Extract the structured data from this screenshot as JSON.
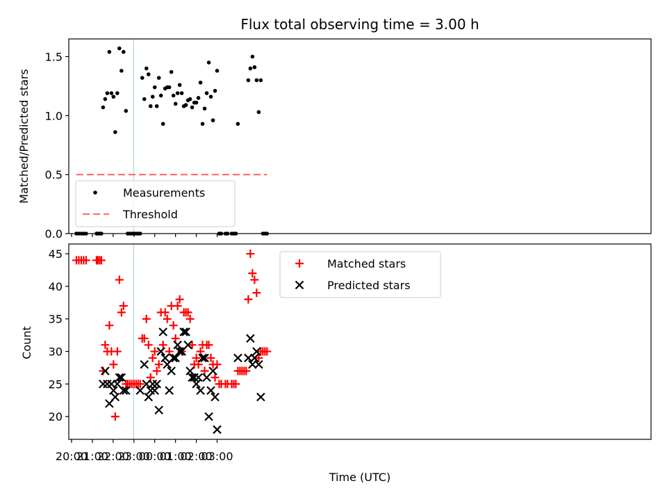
{
  "chart_data": [
    {
      "type": "scatter",
      "title": "Flux total observing time = 3.00 h",
      "ylabel": "Matched/Predicted stars",
      "xlabel": "",
      "xlim": [
        "19:52",
        "23:52 (+24h)"
      ],
      "ylim": [
        0,
        1.65
      ],
      "yticks": [
        "0.0",
        "0.5",
        "1.0",
        "1.5"
      ],
      "grid": false,
      "legend_position": "lower-left",
      "shaded_interval": [
        "22:59",
        "01:58"
      ],
      "series": [
        {
          "name": "Measurements",
          "color": "#000000",
          "marker": "dot",
          "points": [
            [
              "20:14",
              0
            ],
            [
              "20:21",
              0
            ],
            [
              "20:28",
              0
            ],
            [
              "20:35",
              0
            ],
            [
              "20:42",
              0
            ],
            [
              "21:12",
              0
            ],
            [
              "21:16",
              0
            ],
            [
              "21:21",
              0
            ],
            [
              "21:26",
              0
            ],
            [
              "21:31",
              1.07
            ],
            [
              "21:37",
              1.14
            ],
            [
              "21:43",
              1.19
            ],
            [
              "21:49",
              1.54
            ],
            [
              "21:55",
              1.19
            ],
            [
              "22:01",
              1.16
            ],
            [
              "22:06",
              0.86
            ],
            [
              "22:12",
              1.19
            ],
            [
              "22:18",
              1.57
            ],
            [
              "22:24",
              1.38
            ],
            [
              "22:30",
              1.54
            ],
            [
              "22:37",
              1.04
            ],
            [
              "22:42",
              0
            ],
            [
              "22:48",
              0
            ],
            [
              "22:54",
              0
            ],
            [
              "23:00",
              0
            ],
            [
              "23:06",
              0
            ],
            [
              "23:12",
              0
            ],
            [
              "23:18",
              0
            ],
            [
              "23:24",
              1.32
            ],
            [
              "23:30",
              1.14
            ],
            [
              "23:36",
              1.4
            ],
            [
              "23:42",
              1.35
            ],
            [
              "23:48",
              1.08
            ],
            [
              "23:54",
              1.16
            ],
            [
              "24:00",
              1.24
            ],
            [
              "24:06",
              1.08
            ],
            [
              "24:12",
              1.32
            ],
            [
              "24:18",
              1.17
            ],
            [
              "24:24",
              0.93
            ],
            [
              "24:30",
              1.23
            ],
            [
              "24:36",
              1.24
            ],
            [
              "24:42",
              1.24
            ],
            [
              "24:48",
              1.37
            ],
            [
              "24:54",
              1.17
            ],
            [
              "25:00",
              1.1
            ],
            [
              "25:06",
              1.19
            ],
            [
              "25:12",
              1.26
            ],
            [
              "25:18",
              1.19
            ],
            [
              "25:24",
              1.08
            ],
            [
              "25:30",
              1.09
            ],
            [
              "25:36",
              1.13
            ],
            [
              "25:42",
              1.14
            ],
            [
              "25:48",
              1.07
            ],
            [
              "25:54",
              1.11
            ],
            [
              "26:00",
              1.11
            ],
            [
              "26:06",
              1.15
            ],
            [
              "26:12",
              1.28
            ],
            [
              "26:18",
              0.93
            ],
            [
              "26:24",
              1.06
            ],
            [
              "26:30",
              1.19
            ],
            [
              "26:36",
              1.45
            ],
            [
              "26:42",
              1.16
            ],
            [
              "26:48",
              0.96
            ],
            [
              "26:54",
              1.21
            ],
            [
              "27:00",
              1.38
            ],
            [
              "27:06",
              0
            ],
            [
              "27:12",
              0
            ],
            [
              "27:24",
              0
            ],
            [
              "27:30",
              0
            ],
            [
              "27:42",
              0
            ],
            [
              "27:48",
              0
            ],
            [
              "27:54",
              0
            ],
            [
              "28:00",
              0.93
            ],
            [
              "28:30",
              1.3
            ],
            [
              "28:36",
              1.4
            ],
            [
              "28:42",
              1.5
            ],
            [
              "28:48",
              1.41
            ],
            [
              "28:54",
              1.3
            ],
            [
              "29:00",
              1.03
            ],
            [
              "29:06",
              1.3
            ],
            [
              "29:12",
              0
            ],
            [
              "29:18",
              0
            ],
            [
              "29:24",
              0
            ]
          ]
        },
        {
          "name": "Threshold",
          "color": "#ff7070",
          "style": "dashed",
          "points": [
            [
              "20:14",
              0.5
            ],
            [
              "29:24",
              0.5
            ]
          ]
        }
      ]
    },
    {
      "type": "scatter",
      "title": "",
      "ylabel": "Count",
      "xlabel": "Time (UTC)",
      "xlim": [
        "19:52",
        "23:52 (+24h)"
      ],
      "ylim": [
        16.5,
        46.5
      ],
      "yticks": [
        "20",
        "25",
        "30",
        "35",
        "40",
        "45"
      ],
      "xticks": [
        "20:00",
        "21:00",
        "22:00",
        "23:00",
        "00:00",
        "01:00",
        "02:00",
        "03:00"
      ],
      "grid": false,
      "legend_position": "upper-center",
      "shaded_interval": [
        "22:59",
        "01:58"
      ],
      "series": [
        {
          "name": "Matched stars",
          "color": "#ff0000",
          "marker": "plus",
          "points": [
            [
              "20:14",
              44
            ],
            [
              "20:21",
              44
            ],
            [
              "20:28",
              44
            ],
            [
              "20:35",
              44
            ],
            [
              "20:42",
              44
            ],
            [
              "21:12",
              44
            ],
            [
              "21:16",
              44
            ],
            [
              "21:21",
              44
            ],
            [
              "21:26",
              44
            ],
            [
              "21:31",
              27
            ],
            [
              "21:37",
              31
            ],
            [
              "21:43",
              30
            ],
            [
              "21:49",
              34
            ],
            [
              "21:55",
              30
            ],
            [
              "22:01",
              28
            ],
            [
              "22:06",
              20
            ],
            [
              "22:12",
              30
            ],
            [
              "22:18",
              41
            ],
            [
              "22:24",
              36
            ],
            [
              "22:30",
              37
            ],
            [
              "22:37",
              25
            ],
            [
              "22:42",
              25
            ],
            [
              "22:48",
              25
            ],
            [
              "22:54",
              25
            ],
            [
              "23:00",
              25
            ],
            [
              "23:06",
              25
            ],
            [
              "23:12",
              25
            ],
            [
              "23:18",
              25
            ],
            [
              "23:24",
              32
            ],
            [
              "23:30",
              32
            ],
            [
              "23:36",
              35
            ],
            [
              "23:42",
              31
            ],
            [
              "23:48",
              26
            ],
            [
              "23:54",
              29
            ],
            [
              "24:00",
              30
            ],
            [
              "24:06",
              27
            ],
            [
              "24:12",
              28
            ],
            [
              "24:18",
              36
            ],
            [
              "24:24",
              31
            ],
            [
              "24:30",
              36
            ],
            [
              "24:36",
              35
            ],
            [
              "24:42",
              30
            ],
            [
              "24:48",
              37
            ],
            [
              "24:54",
              34
            ],
            [
              "25:00",
              32
            ],
            [
              "25:06",
              37
            ],
            [
              "25:12",
              38
            ],
            [
              "25:18",
              30
            ],
            [
              "25:24",
              36
            ],
            [
              "25:30",
              36
            ],
            [
              "25:36",
              36
            ],
            [
              "25:42",
              35
            ],
            [
              "25:48",
              31
            ],
            [
              "25:54",
              28
            ],
            [
              "26:00",
              29
            ],
            [
              "26:06",
              28
            ],
            [
              "26:12",
              30
            ],
            [
              "26:18",
              31
            ],
            [
              "26:24",
              27
            ],
            [
              "26:30",
              31
            ],
            [
              "26:36",
              31
            ],
            [
              "26:42",
              29
            ],
            [
              "26:48",
              28
            ],
            [
              "26:54",
              26
            ],
            [
              "27:00",
              28
            ],
            [
              "27:06",
              25
            ],
            [
              "27:12",
              25
            ],
            [
              "27:24",
              25
            ],
            [
              "27:30",
              25
            ],
            [
              "27:42",
              25
            ],
            [
              "27:48",
              25
            ],
            [
              "27:54",
              25
            ],
            [
              "28:00",
              27
            ],
            [
              "28:06",
              27
            ],
            [
              "28:12",
              27
            ],
            [
              "28:18",
              27
            ],
            [
              "28:24",
              27
            ],
            [
              "28:30",
              38
            ],
            [
              "28:36",
              45
            ],
            [
              "28:42",
              42
            ],
            [
              "28:48",
              41
            ],
            [
              "28:54",
              39
            ],
            [
              "29:00",
              29
            ],
            [
              "29:06",
              30
            ],
            [
              "29:12",
              30
            ],
            [
              "29:18",
              30
            ],
            [
              "29:24",
              30
            ]
          ]
        },
        {
          "name": "Predicted stars",
          "color": "#000000",
          "marker": "x",
          "points": [
            [
              "21:31",
              25
            ],
            [
              "21:37",
              27
            ],
            [
              "21:43",
              25
            ],
            [
              "21:49",
              22
            ],
            [
              "21:55",
              25
            ],
            [
              "22:01",
              24
            ],
            [
              "22:06",
              23
            ],
            [
              "22:12",
              25
            ],
            [
              "22:18",
              26
            ],
            [
              "22:24",
              26
            ],
            [
              "22:30",
              24
            ],
            [
              "22:37",
              24
            ],
            [
              "23:18",
              24
            ],
            [
              "23:30",
              28
            ],
            [
              "23:36",
              25
            ],
            [
              "23:42",
              23
            ],
            [
              "23:48",
              24
            ],
            [
              "23:54",
              25
            ],
            [
              "24:00",
              24
            ],
            [
              "24:06",
              25
            ],
            [
              "24:12",
              21
            ],
            [
              "24:18",
              30
            ],
            [
              "24:24",
              33
            ],
            [
              "24:30",
              29
            ],
            [
              "24:36",
              28
            ],
            [
              "24:42",
              24
            ],
            [
              "24:48",
              27
            ],
            [
              "24:54",
              29
            ],
            [
              "25:00",
              29
            ],
            [
              "25:06",
              31
            ],
            [
              "25:12",
              30
            ],
            [
              "25:18",
              30
            ],
            [
              "25:24",
              33
            ],
            [
              "25:30",
              33
            ],
            [
              "25:36",
              31
            ],
            [
              "25:42",
              27
            ],
            [
              "25:48",
              26
            ],
            [
              "25:54",
              26
            ],
            [
              "26:00",
              25
            ],
            [
              "26:06",
              26
            ],
            [
              "26:12",
              24
            ],
            [
              "26:18",
              29
            ],
            [
              "26:24",
              29
            ],
            [
              "26:30",
              26
            ],
            [
              "26:36",
              20
            ],
            [
              "26:42",
              24
            ],
            [
              "26:48",
              27
            ],
            [
              "26:54",
              23
            ],
            [
              "27:00",
              18
            ],
            [
              "28:00",
              29
            ],
            [
              "28:30",
              29
            ],
            [
              "28:36",
              32
            ],
            [
              "28:42",
              28
            ],
            [
              "28:48",
              29
            ],
            [
              "28:54",
              30
            ],
            [
              "29:00",
              28
            ],
            [
              "29:06",
              23
            ]
          ]
        }
      ]
    }
  ]
}
